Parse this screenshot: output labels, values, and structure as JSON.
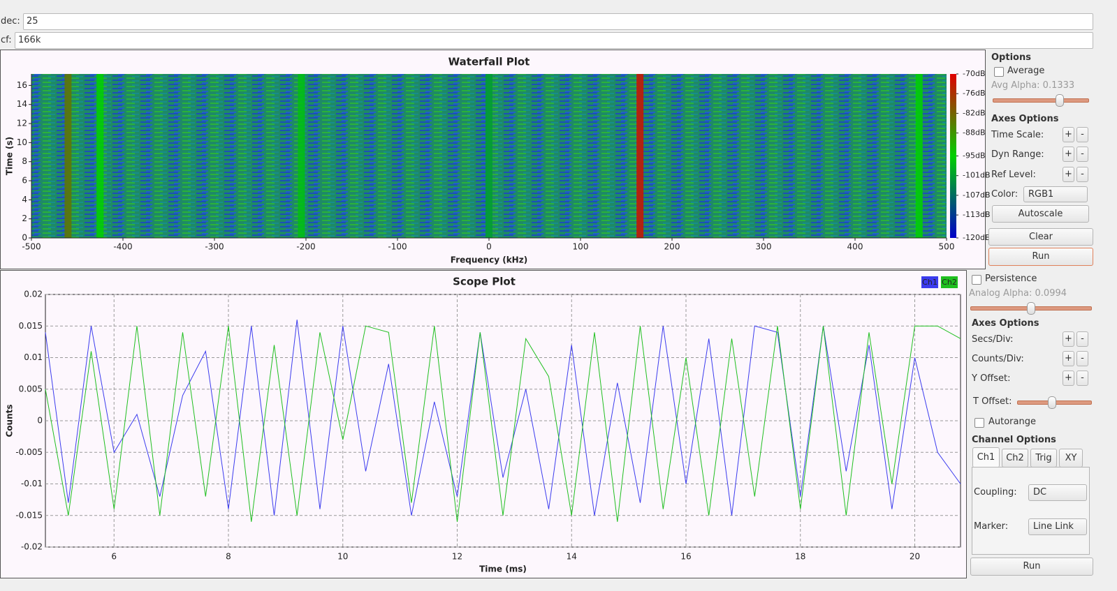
{
  "inputs": [
    {
      "label": "dec:",
      "value": "25"
    },
    {
      "label": "cf:",
      "value": "166k"
    }
  ],
  "buttons": {
    "plus": "+",
    "minus": "-"
  },
  "waterfall_controls": {
    "options": "Options",
    "average": "Average",
    "avg_alpha": "Avg Alpha: 0.1333",
    "axes_options": "Axes Options",
    "time_scale": "Time Scale:",
    "dyn_range": "Dyn Range:",
    "ref_level": "Ref Level:",
    "color": "Color:",
    "color_value": "RGB1",
    "autoscale": "Autoscale",
    "clear": "Clear",
    "run": "Run"
  },
  "scope_controls": {
    "persistence": "Persistence",
    "analog_alpha": "Analog Alpha: 0.0994",
    "axes_options": "Axes Options",
    "secs_div": "Secs/Div:",
    "counts_div": "Counts/Div:",
    "y_offset": "Y Offset:",
    "t_offset": "T Offset:",
    "autorange": "Autorange",
    "channel_options": "Channel Options",
    "tabs": [
      "Ch1",
      "Ch2",
      "Trig",
      "XY"
    ],
    "coupling": "Coupling:",
    "coupling_value": "DC",
    "marker": "Marker:",
    "marker_value": "Line Link",
    "run": "Run"
  },
  "chart_data": [
    {
      "type": "heatmap",
      "title": "Waterfall Plot",
      "x_label": "Frequency (kHz)",
      "y_label": "Time (s)",
      "xlim": [
        -500,
        500
      ],
      "xticks": [
        -500,
        -400,
        -300,
        -200,
        -100,
        0,
        100,
        200,
        300,
        400,
        500
      ],
      "ylim": [
        0,
        17.2
      ],
      "yticks": [
        0,
        2,
        4,
        6,
        8,
        10,
        12,
        14,
        16
      ],
      "zlim": [
        -120,
        -70
      ],
      "zticks": [
        {
          "value": -70,
          "label": "-70dB"
        },
        {
          "value": -76,
          "label": "-76dB"
        },
        {
          "value": -82,
          "label": "-82dB"
        },
        {
          "value": -88,
          "label": "-88dB"
        },
        {
          "value": -95,
          "label": "-95dB"
        },
        {
          "value": -101,
          "label": "-101dB"
        },
        {
          "value": -107,
          "label": "-107dB"
        },
        {
          "value": -113,
          "label": "-113dB"
        },
        {
          "value": -120,
          "label": "-120dB"
        }
      ],
      "x": [
        -460,
        -425,
        -205,
        0,
        165,
        470
      ],
      "values": [
        -84,
        -95,
        -97,
        -101,
        -72,
        -95
      ]
    },
    {
      "type": "line",
      "title": "Scope Plot",
      "x_label": "Time (ms)",
      "y_label": "Counts",
      "xlim": [
        4.8,
        20.8
      ],
      "xticks": [
        6,
        8,
        10,
        12,
        14,
        16,
        18,
        20
      ],
      "ylim": [
        -0.02,
        0.02
      ],
      "yticks": [
        0.02,
        0.015,
        0.01,
        0.005,
        0,
        -0.005,
        -0.01,
        -0.015,
        -0.02
      ],
      "grid": true,
      "x": [
        4.8,
        5.2,
        5.6,
        6,
        6.4,
        6.8,
        7.2,
        7.6,
        8,
        8.4,
        8.8,
        9.2,
        9.6,
        10,
        10.4,
        10.8,
        11.2,
        11.6,
        12,
        12.4,
        12.8,
        13.2,
        13.6,
        14,
        14.4,
        14.8,
        15.2,
        15.6,
        16,
        16.4,
        16.8,
        17.2,
        17.6,
        18,
        18.4,
        18.8,
        19.2,
        19.6,
        20,
        20.4,
        20.8
      ],
      "series": [
        {
          "name": "Ch1",
          "color": "#3b3bee",
          "values": [
            0.014,
            -0.013,
            0.015,
            -0.005,
            0.001,
            -0.012,
            0.004,
            0.011,
            -0.014,
            0.015,
            -0.015,
            0.016,
            -0.014,
            0.015,
            -0.008,
            0.009,
            -0.015,
            0.003,
            -0.012,
            0.014,
            -0.009,
            0.005,
            -0.014,
            0.012,
            -0.015,
            0.006,
            -0.013,
            0.015,
            -0.01,
            0.013,
            -0.015,
            0.015,
            0.014,
            -0.012,
            0.015,
            -0.008,
            0.012,
            -0.014,
            0.01,
            -0.005,
            -0.01
          ]
        },
        {
          "name": "Ch2",
          "color": "#1fbf1f",
          "values": [
            0.005,
            -0.015,
            0.011,
            -0.014,
            0.015,
            -0.015,
            0.014,
            -0.012,
            0.015,
            -0.016,
            0.012,
            -0.015,
            0.014,
            -0.003,
            0.015,
            0.014,
            -0.013,
            0.015,
            -0.016,
            0.014,
            -0.015,
            0.013,
            0.007,
            -0.015,
            0.014,
            -0.016,
            0.015,
            -0.014,
            0.01,
            -0.015,
            0.013,
            -0.012,
            0.015,
            -0.014,
            0.015,
            -0.015,
            0.014,
            -0.01,
            0.015,
            0.015,
            0.013
          ]
        }
      ]
    }
  ]
}
